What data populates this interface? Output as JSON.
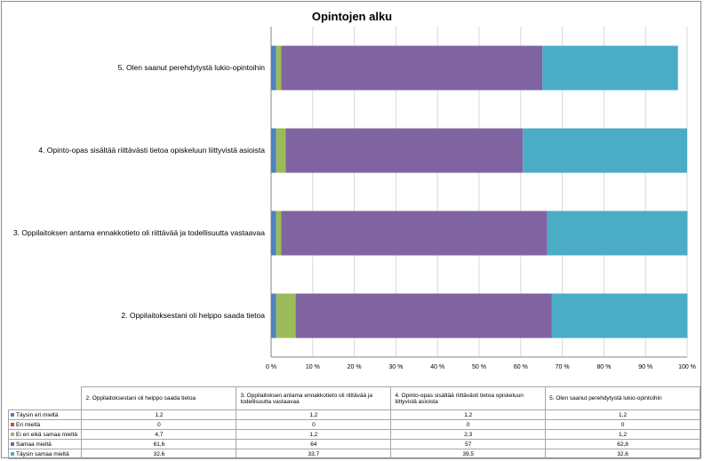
{
  "chart_data": {
    "type": "bar",
    "orientation": "horizontal",
    "stacked": "percent",
    "title": "Opintojen alku",
    "categories": [
      "2. Oppilaitoksestani oli helppo saada tietoa",
      "3. Oppilaitoksen antama ennakkotieto oli riittävää ja todellisuutta vastaavaa",
      "4. Opinto-opas sisältää riittävästi tietoa opiskeluun liittyvistä asioista",
      "5. Olen saanut perehdytystä lukio-opintoihin"
    ],
    "table_headers": [
      "2. Oppilaitoksestani oli helppo saada tietoa",
      "3. Oppilaitoksen antama ennakkotieto oli riittävää ja todellisuutta vastaavaa",
      "4. Opinto-opas sisältää riittävästi tietoa opiskeluun liittyvistä asioista",
      "5. Olen saanut perehdytystä lukio-opintoihin"
    ],
    "series": [
      {
        "name": "Täysin eri mieltä",
        "color": "#4f81bd",
        "values": [
          1.2,
          1.2,
          1.2,
          1.2
        ],
        "labels": [
          "1,2",
          "1,2",
          "1,2",
          "1,2"
        ]
      },
      {
        "name": "Eri mieltä",
        "color": "#c0504d",
        "values": [
          0,
          0,
          0,
          0
        ],
        "labels": [
          "0",
          "0",
          "0",
          "0"
        ]
      },
      {
        "name": "Ei eri eikä samaa mieltä",
        "color": "#9bbb59",
        "values": [
          4.7,
          1.2,
          2.3,
          1.2
        ],
        "labels": [
          "4,7",
          "1,2",
          "2,3",
          "1,2"
        ]
      },
      {
        "name": "Samaa mieltä",
        "color": "#8064a2",
        "values": [
          61.6,
          64,
          57,
          62.8
        ],
        "labels": [
          "61,6",
          "64",
          "57",
          "62,8"
        ]
      },
      {
        "name": "Täysin samaa mieltä",
        "color": "#4bacc6",
        "values": [
          32.6,
          33.7,
          39.5,
          32.6
        ],
        "labels": [
          "32,6",
          "33,7",
          "39,5",
          "32,6"
        ]
      }
    ],
    "xlim": [
      0,
      100
    ],
    "xticks": [
      "0 %",
      "10 %",
      "20 %",
      "30 %",
      "40 %",
      "50 %",
      "60 %",
      "70 %",
      "80 %",
      "90 %",
      "100 %"
    ],
    "grid": true,
    "legend": "data table below chart"
  }
}
